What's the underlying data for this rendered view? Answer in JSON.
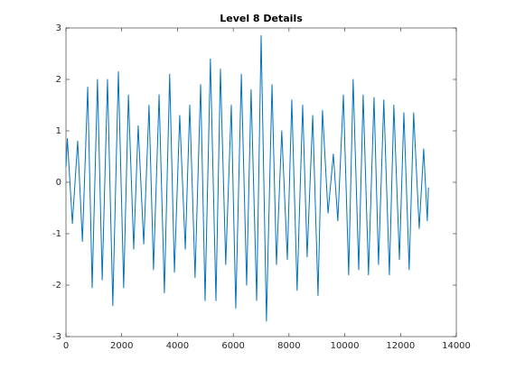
{
  "chart_data": {
    "type": "line",
    "title": "Level 8 Details",
    "x": [
      0,
      50,
      230,
      420,
      590,
      780,
      940,
      1130,
      1300,
      1490,
      1680,
      1880,
      2070,
      2240,
      2430,
      2590,
      2790,
      2980,
      3140,
      3340,
      3530,
      3720,
      3890,
      4080,
      4280,
      4440,
      4630,
      4830,
      4990,
      5180,
      5380,
      5540,
      5730,
      5930,
      6090,
      6290,
      6480,
      6640,
      6840,
      7000,
      7190,
      7390,
      7550,
      7740,
      7940,
      8100,
      8290,
      8490,
      8650,
      8850,
      9040,
      9200,
      9400,
      9590,
      9750,
      9950,
      10140,
      10300,
      10500,
      10660,
      10850,
      11050,
      11210,
      11400,
      11600,
      11760,
      11960,
      12120,
      12310,
      12470,
      12670,
      12830,
      12960,
      13000
    ],
    "series": [
      {
        "color": "#0072bd",
        "values": [
          0.3,
          0.85,
          -0.8,
          0.8,
          -1.15,
          1.85,
          -2.05,
          2.0,
          -1.9,
          2.0,
          -2.4,
          2.15,
          -2.05,
          1.7,
          -1.3,
          1.1,
          -1.2,
          1.5,
          -1.7,
          1.7,
          -2.15,
          2.1,
          -1.75,
          1.3,
          -1.3,
          1.5,
          -1.85,
          1.9,
          -2.3,
          2.4,
          -2.3,
          2.2,
          -1.6,
          1.5,
          -2.45,
          2.1,
          -2.0,
          1.8,
          -2.3,
          2.85,
          -2.7,
          1.9,
          -1.6,
          1.0,
          -1.5,
          1.6,
          -2.1,
          1.5,
          -1.45,
          1.3,
          -2.2,
          1.4,
          -0.6,
          0.55,
          -0.75,
          1.7,
          -1.8,
          2.0,
          -1.7,
          1.7,
          -1.8,
          1.65,
          -1.6,
          1.6,
          -1.8,
          1.5,
          -1.5,
          1.35,
          -1.7,
          1.35,
          -0.9,
          0.65,
          -0.75,
          -0.1
        ]
      }
    ],
    "xlim": [
      0,
      14000
    ],
    "xticks": [
      0,
      2000,
      4000,
      6000,
      8000,
      10000,
      12000,
      14000
    ],
    "ylim": [
      -3,
      3
    ],
    "yticks": [
      -3,
      -2,
      -1,
      0,
      1,
      2,
      3
    ],
    "grid": false
  }
}
